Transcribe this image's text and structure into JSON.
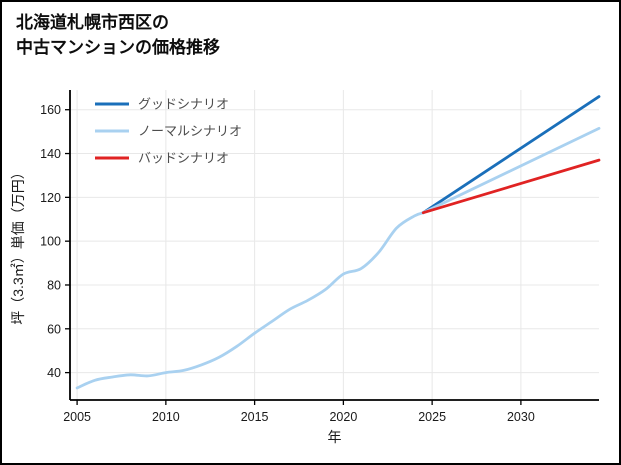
{
  "title": {
    "line1": "北海道札幌市西区の",
    "line2": "中古マンションの価格推移"
  },
  "chart_data": {
    "type": "line",
    "title": "北海道札幌市西区の中古マンションの価格推移",
    "xlabel": "年",
    "ylabel": "坪（3.3㎡）単価（万円）",
    "xlim": [
      2004.6,
      2034.4
    ],
    "ylim": [
      27.5,
      169
    ],
    "xticks": [
      2005,
      2010,
      2015,
      2020,
      2025,
      2030
    ],
    "yticks": [
      40,
      60,
      80,
      100,
      120,
      140,
      160
    ],
    "grid": true,
    "grid_color": "#e8e8e8",
    "axis_color": "#000000",
    "legend_position": "upper-left",
    "legend": [
      {
        "label": "グッドシナリオ",
        "color": "#1a6fba"
      },
      {
        "label": "ノーマルシナリオ",
        "color": "#a9d1f0"
      },
      {
        "label": "バッドシナリオ",
        "color": "#e02323"
      }
    ],
    "series": [
      {
        "name": "historical",
        "color": "#a9d1f0",
        "width": 2.8,
        "x": [
          2005,
          2006,
          2007,
          2008,
          2009,
          2010,
          2011,
          2012,
          2013,
          2014,
          2015,
          2016,
          2017,
          2018,
          2019,
          2020,
          2021,
          2022,
          2023,
          2024,
          2024.5
        ],
        "y": [
          33,
          36.5,
          38,
          39,
          38.5,
          40,
          41,
          43.5,
          47,
          52,
          58,
          63.5,
          69,
          73,
          78,
          85,
          87.5,
          95,
          106,
          111.5,
          113
        ]
      },
      {
        "name": "グッドシナリオ",
        "color": "#1a6fba",
        "width": 2.8,
        "x": [
          2024.5,
          2034.4
        ],
        "y": [
          113,
          166
        ]
      },
      {
        "name": "ノーマルシナリオ",
        "color": "#a9d1f0",
        "width": 2.8,
        "x": [
          2024.5,
          2034.4
        ],
        "y": [
          113,
          151.5
        ]
      },
      {
        "name": "バッドシナリオ",
        "color": "#e02323",
        "width": 2.8,
        "x": [
          2024.5,
          2034.4
        ],
        "y": [
          113,
          137
        ]
      }
    ]
  }
}
